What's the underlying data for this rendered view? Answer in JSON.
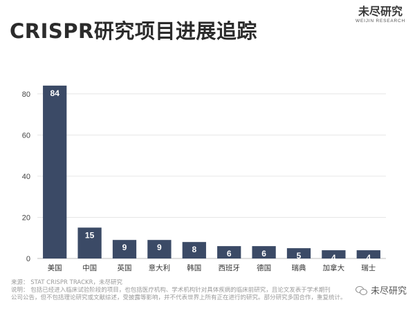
{
  "header": {
    "title": "CRISPR研究项目进展追踪",
    "logo_main": "未尽研究",
    "logo_sub": "WEIJIN RESEARCH"
  },
  "chart_data": {
    "type": "bar",
    "title": "CRISPR研究项目进展追踪",
    "categories": [
      "美国",
      "中国",
      "英国",
      "意大利",
      "韩国",
      "西班牙",
      "德国",
      "瑞典",
      "加拿大",
      "瑞士"
    ],
    "values": [
      84,
      15,
      9,
      9,
      8,
      6,
      6,
      5,
      4,
      4
    ],
    "ylim": [
      0,
      90
    ],
    "yticks": [
      0,
      20,
      40,
      60,
      80
    ],
    "grid": true,
    "bar_color": "#3b4a66",
    "xlabel": "",
    "ylabel": ""
  },
  "notes": {
    "source": "来源：  STAT CRISPR TRACKR，未尽研究",
    "line1": "说明：  包括已经进入临床试验阶段的项目，也包括医疗机构、学术机构针对具体疾病的临床前研究，且论文发表于学术期刊",
    "line2": "公司公告，但不包括理论研究或文献综述，受披露等影响，并不代表世界上所有正在进行的研究。部分研究多国合作，重复统计。"
  },
  "watermark": {
    "text": "未尽研究",
    "icon": "wechat-icon"
  }
}
